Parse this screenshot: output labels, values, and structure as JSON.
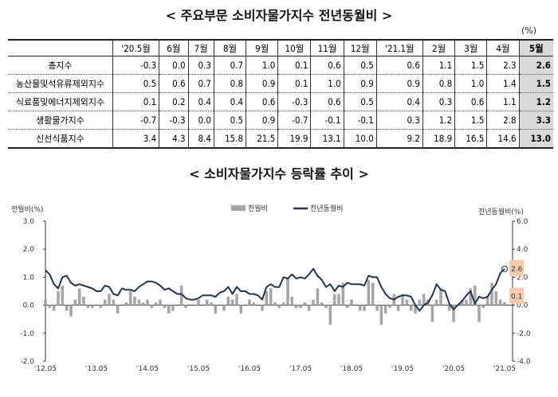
{
  "table": {
    "title": "< 주요부문 소비자물가지수 전년동월비 >",
    "unit": "(%)",
    "columns": [
      "'20.5월",
      "6월",
      "7월",
      "8월",
      "9월",
      "10월",
      "11월",
      "12월",
      "'21.1월",
      "2월",
      "3월",
      "4월",
      "5월"
    ],
    "rows": [
      {
        "label": "총지수",
        "values": [
          "-0.3",
          "0.0",
          "0.3",
          "0.7",
          "1.0",
          "0.1",
          "0.6",
          "0.5",
          "0.6",
          "1.1",
          "1.5",
          "2.3",
          "2.6"
        ]
      },
      {
        "label": "농산물및석유류제외지수",
        "values": [
          "0.5",
          "0.6",
          "0.7",
          "0.8",
          "0.9",
          "0.1",
          "1.0",
          "0.9",
          "0.9",
          "0.8",
          "1.0",
          "1.4",
          "1.5"
        ]
      },
      {
        "label": "식료품및에너지제외지수",
        "values": [
          "0.1",
          "0.2",
          "0.4",
          "0.4",
          "0.6",
          "-0.3",
          "0.6",
          "0.5",
          "0.4",
          "0.3",
          "0.6",
          "1.1",
          "1.2"
        ]
      },
      {
        "label": "생활물가지수",
        "values": [
          "-0.7",
          "-0.3",
          "0.0",
          "0.5",
          "0.9",
          "-0.7",
          "-0.1",
          "-0.1",
          "0.3",
          "1.2",
          "1.5",
          "2.8",
          "3.3"
        ]
      },
      {
        "label": "신선식품지수",
        "values": [
          "3.4",
          "4.3",
          "8.4",
          "15.8",
          "21.5",
          "19.9",
          "13.1",
          "10.0",
          "9.2",
          "18.9",
          "16.5",
          "14.6",
          "13.0"
        ]
      }
    ],
    "highlight_color": "#d9d9d9"
  },
  "chart_data": {
    "type": "bar+line",
    "title": "< 소비자물가지수 등락률 추이 >",
    "ylabel_left": "전월비(%)",
    "ylabel_right": "전년동월비(%)",
    "ylim_left": [
      -2.0,
      3.0
    ],
    "ylim_right": [
      -4.0,
      6.0
    ],
    "yticks_left": [
      "3.0",
      "2.0",
      "1.0",
      "0.0",
      "-1.0",
      "-2.0"
    ],
    "yticks_right": [
      "6.0",
      "4.0",
      "2.0",
      "0.0",
      "-2.0",
      "-4.0"
    ],
    "xtick_labels": [
      "'12.05",
      "'13.05",
      "'14.05",
      "'15.05",
      "'16.05",
      "'17.05",
      "'18.05",
      "'19.05",
      "'20.05",
      "'21.05"
    ],
    "legend_position": "top-center",
    "grid": false,
    "series": [
      {
        "name": "전월비",
        "type": "bar",
        "axis": "left",
        "color": "#a6a6a6",
        "values": [
          0.2,
          -0.1,
          -0.2,
          0.5,
          0.7,
          -0.2,
          -0.4,
          0.2,
          0.6,
          0.3,
          -0.1,
          -0.1,
          0.0,
          -0.1,
          0.2,
          0.4,
          0.2,
          -0.3,
          0.0,
          0.1,
          0.5,
          0.3,
          0.2,
          0.1,
          0.2,
          -0.1,
          0.1,
          0.2,
          -0.1,
          -0.3,
          -0.2,
          0.0,
          0.7,
          -0.1,
          0.0,
          0.0,
          0.2,
          0.0,
          0.2,
          0.1,
          -0.3,
          0.0,
          -0.2,
          0.3,
          0.2,
          0.4,
          -0.3,
          0.0,
          0.2,
          0.1,
          0.0,
          -0.2,
          0.5,
          0.6,
          0.1,
          -0.1,
          0.1,
          1.0,
          0.3,
          -0.1,
          -0.1,
          0.1,
          -0.2,
          0.2,
          0.6,
          0.1,
          -0.1,
          -0.7,
          0.4,
          0.4,
          0.8,
          -0.1,
          0.2,
          0.0,
          -0.2,
          -0.2,
          0.9,
          0.8,
          -0.2,
          -0.7,
          -0.3,
          -0.1,
          0.4,
          -0.2,
          0.4,
          0.2,
          -0.2,
          -0.3,
          0.2,
          0.4,
          0.2,
          -0.6,
          0.2,
          0.6,
          0.0,
          -0.2,
          -0.6,
          0.0,
          0.2,
          0.2,
          0.6,
          0.7,
          -0.6,
          -0.1,
          0.3,
          0.8,
          0.5,
          0.2,
          0.1
        ]
      },
      {
        "name": "전년동월비",
        "type": "line",
        "axis": "right",
        "color": "#1f3552",
        "values": [
          2.5,
          2.2,
          1.5,
          1.2,
          2.0,
          2.1,
          1.6,
          1.4,
          1.5,
          1.4,
          1.3,
          1.2,
          1.0,
          1.0,
          1.4,
          1.3,
          0.8,
          0.7,
          1.2,
          1.1,
          1.1,
          1.0,
          1.3,
          1.5,
          1.7,
          1.7,
          1.6,
          1.4,
          1.1,
          1.2,
          1.0,
          0.8,
          0.8,
          0.5,
          0.4,
          0.4,
          0.5,
          0.7,
          0.7,
          0.7,
          0.6,
          0.9,
          1.0,
          1.3,
          0.8,
          1.3,
          1.0,
          1.0,
          0.8,
          0.8,
          0.7,
          0.4,
          1.3,
          1.5,
          1.3,
          1.3,
          2.0,
          1.9,
          2.2,
          1.9,
          2.0,
          1.9,
          2.2,
          2.6,
          2.1,
          1.8,
          1.3,
          1.5,
          1.0,
          1.4,
          1.3,
          1.6,
          1.5,
          1.5,
          1.5,
          1.4,
          2.1,
          2.0,
          2.0,
          1.3,
          0.8,
          0.5,
          0.4,
          0.6,
          0.7,
          0.7,
          0.6,
          0.0,
          -0.4,
          0.0,
          0.2,
          0.7,
          1.5,
          1.1,
          1.0,
          0.1,
          -0.3,
          0.0,
          0.3,
          0.7,
          1.0,
          0.1,
          0.6,
          0.5,
          0.6,
          1.1,
          1.5,
          2.3,
          2.6
        ]
      }
    ],
    "annotations": [
      {
        "text": "2.6",
        "series": "전년동월비",
        "color": "#f8cbad"
      },
      {
        "text": "0.1",
        "series": "전월비",
        "color": "#f8cbad"
      }
    ]
  }
}
